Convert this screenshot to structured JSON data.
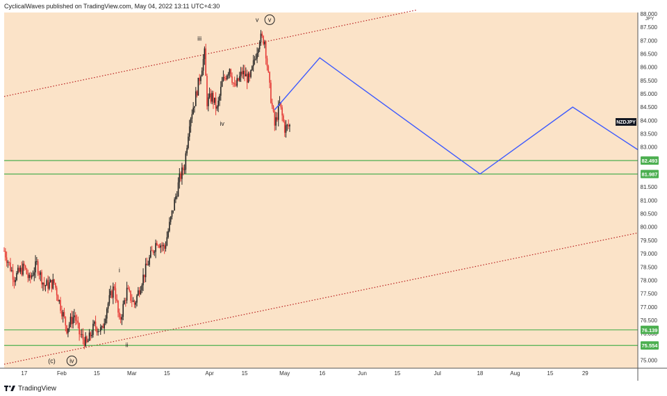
{
  "header": {
    "published_text": "CyclicalWaves published on TradingView.com, May 04, 2022 13:11 UTC+4:30"
  },
  "footer": {
    "brand": "TradingView"
  },
  "chart_data": {
    "type": "candlestick",
    "symbol": "NZDJPY",
    "currency": "JPY",
    "background": "#fbe3c8",
    "colors": {
      "up": "#26a69a",
      "down": "#e53935",
      "candle_body": "#222222",
      "support": "#4caf50",
      "projection": "#3d5afe",
      "channel": "#b71c1c",
      "symbol_badge": "#131722"
    },
    "ylim": [
      74.7,
      88.05
    ],
    "y_ticks": [
      "75.000",
      "75.500",
      "76.000",
      "76.500",
      "77.000",
      "77.500",
      "78.000",
      "78.500",
      "79.000",
      "79.500",
      "80.000",
      "80.500",
      "81.000",
      "81.500",
      "82.000",
      "82.500",
      "83.000",
      "83.500",
      "84.000",
      "84.500",
      "85.000",
      "85.500",
      "86.000",
      "86.500",
      "87.000",
      "87.500",
      "88.000"
    ],
    "x_ticks": [
      {
        "label": "17",
        "day": 0
      },
      {
        "label": "Feb",
        "day": 15
      },
      {
        "label": "15",
        "day": 29
      },
      {
        "label": "Mar",
        "day": 43
      },
      {
        "label": "15",
        "day": 57
      },
      {
        "label": "Apr",
        "day": 74
      },
      {
        "label": "15",
        "day": 88
      },
      {
        "label": "May",
        "day": 104
      },
      {
        "label": "16",
        "day": 119
      },
      {
        "label": "Jun",
        "day": 135
      },
      {
        "label": "15",
        "day": 149
      },
      {
        "label": "Jul",
        "day": 165
      },
      {
        "label": "18",
        "day": 182
      },
      {
        "label": "Aug",
        "day": 196
      },
      {
        "label": "15",
        "day": 210
      },
      {
        "label": "29",
        "day": 224
      }
    ],
    "x_range_days": [
      -8,
      245
    ],
    "horizontal_levels": [
      {
        "label": "82.493",
        "value": 82.493
      },
      {
        "label": "81.987",
        "value": 81.987
      },
      {
        "label": "76.139",
        "value": 76.139
      },
      {
        "label": "75.554",
        "value": 75.554
      }
    ],
    "price_path": [
      {
        "day": -8,
        "value": 79.1
      },
      {
        "day": -4,
        "value": 78.1
      },
      {
        "day": 0,
        "value": 78.5
      },
      {
        "day": 2,
        "value": 78.0
      },
      {
        "day": 5,
        "value": 78.6
      },
      {
        "day": 8,
        "value": 77.8
      },
      {
        "day": 12,
        "value": 77.9
      },
      {
        "day": 14,
        "value": 77.2
      },
      {
        "day": 17,
        "value": 76.2
      },
      {
        "day": 20,
        "value": 76.7
      },
      {
        "day": 22,
        "value": 76.0
      },
      {
        "day": 25,
        "value": 75.6
      },
      {
        "day": 28,
        "value": 76.3
      },
      {
        "day": 31,
        "value": 76.1
      },
      {
        "day": 33,
        "value": 77.0
      },
      {
        "day": 36,
        "value": 77.8
      },
      {
        "day": 38,
        "value": 76.4
      },
      {
        "day": 41,
        "value": 77.6
      },
      {
        "day": 44,
        "value": 77.1
      },
      {
        "day": 47,
        "value": 78.0
      },
      {
        "day": 50,
        "value": 78.8
      },
      {
        "day": 53,
        "value": 79.5
      },
      {
        "day": 56,
        "value": 79.2
      },
      {
        "day": 59,
        "value": 80.5
      },
      {
        "day": 62,
        "value": 81.8
      },
      {
        "day": 64,
        "value": 82.3
      },
      {
        "day": 66,
        "value": 84.0
      },
      {
        "day": 68,
        "value": 84.7
      },
      {
        "day": 70,
        "value": 85.6
      },
      {
        "day": 72,
        "value": 86.5
      },
      {
        "day": 73,
        "value": 84.7
      },
      {
        "day": 75,
        "value": 84.9
      },
      {
        "day": 77,
        "value": 84.4
      },
      {
        "day": 79,
        "value": 85.4
      },
      {
        "day": 82,
        "value": 86.0
      },
      {
        "day": 84,
        "value": 85.2
      },
      {
        "day": 87,
        "value": 85.8
      },
      {
        "day": 90,
        "value": 85.5
      },
      {
        "day": 92,
        "value": 86.3
      },
      {
        "day": 94,
        "value": 87.1
      },
      {
        "day": 96,
        "value": 87.0
      },
      {
        "day": 98,
        "value": 85.2
      },
      {
        "day": 100,
        "value": 83.8
      },
      {
        "day": 102,
        "value": 84.6
      },
      {
        "day": 104,
        "value": 83.7
      },
      {
        "day": 106,
        "value": 83.8
      }
    ],
    "projection_path": [
      {
        "day": 100,
        "value": 84.4
      },
      {
        "day": 118,
        "value": 86.35
      },
      {
        "day": 182,
        "value": 81.99
      },
      {
        "day": 219,
        "value": 84.5
      },
      {
        "day": 245,
        "value": 82.9
      }
    ],
    "channel_lines": [
      {
        "from": {
          "day": -8,
          "value": 84.9
        },
        "to": {
          "day": 157,
          "value": 88.15
        }
      },
      {
        "from": {
          "day": -8,
          "value": 74.85
        },
        "to": {
          "day": 245,
          "value": 79.78
        }
      }
    ],
    "wave_labels": [
      {
        "text": "iii",
        "day": 70,
        "value": 87.0,
        "circled": false
      },
      {
        "text": "v",
        "day": 93,
        "value": 87.7,
        "circled": false
      },
      {
        "text": "v",
        "day": 98,
        "value": 87.7,
        "circled": true
      },
      {
        "text": "iv",
        "day": 79,
        "value": 83.8,
        "circled": false
      },
      {
        "text": "i",
        "day": 38,
        "value": 78.3,
        "circled": false
      },
      {
        "text": "ii",
        "day": 41,
        "value": 75.5,
        "circled": false
      },
      {
        "text": "(c)",
        "day": 11,
        "value": 74.9,
        "circled": false
      },
      {
        "text": "iv",
        "day": 19,
        "value": 74.9,
        "circled": true
      }
    ]
  }
}
